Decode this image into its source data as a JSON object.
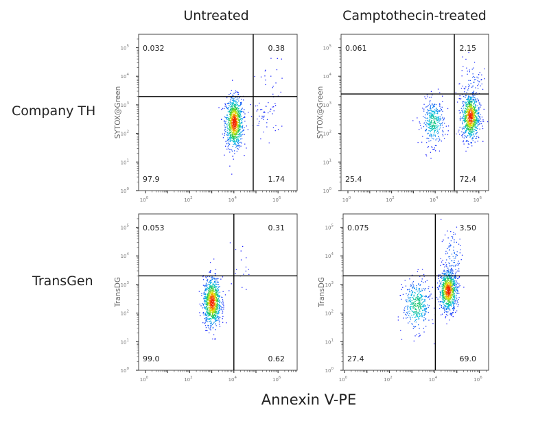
{
  "figure": {
    "column_titles": [
      "Untreated",
      "Camptothecin-treated"
    ],
    "row_labels": [
      "Company TH",
      "TransGen"
    ],
    "x_axis_label": "Annexin V-PE"
  },
  "chart_data": [
    {
      "type": "scatter",
      "row": "Company TH",
      "column": "Untreated",
      "ylabel": "SYTOX@Green",
      "x_scale": "log",
      "y_scale": "log",
      "xlim": [
        1,
        8000000
      ],
      "ylim": [
        1,
        250000
      ],
      "x_ticks": [
        "10^0",
        "10^2",
        "10^4",
        "10^6"
      ],
      "y_ticks": [
        "10^0",
        "10^1",
        "10^2",
        "10^3",
        "10^4",
        "10^5"
      ],
      "gate": {
        "x": 75000,
        "y": 1950
      },
      "quadrants": {
        "upper_left": "0.032",
        "upper_right": "0.38",
        "lower_left": "97.9",
        "lower_right": "1.74"
      },
      "populations": [
        {
          "log_x": 4.0,
          "log_y": 2.4,
          "sd_x": 0.2,
          "sd_y": 0.45,
          "events": 900
        },
        {
          "log_x": 5.4,
          "log_y": 2.6,
          "sd_x": 0.35,
          "sd_y": 0.35,
          "events": 45
        },
        {
          "log_x": 5.6,
          "log_y": 3.8,
          "sd_x": 0.35,
          "sd_y": 0.5,
          "events": 25
        }
      ]
    },
    {
      "type": "scatter",
      "row": "Company TH",
      "column": "Camptothecin-treated",
      "ylabel": "SYTOX@Green",
      "x_scale": "log",
      "y_scale": "log",
      "xlim": [
        1,
        8000000
      ],
      "ylim": [
        1,
        250000
      ],
      "x_ticks": [
        "10^0",
        "10^2",
        "10^4",
        "10^6"
      ],
      "y_ticks": [
        "10^0",
        "10^1",
        "10^2",
        "10^3",
        "10^4",
        "10^5"
      ],
      "gate": {
        "x": 75000,
        "y": 2400
      },
      "quadrants": {
        "upper_left": "0.061",
        "upper_right": "2.15",
        "lower_left": "25.4",
        "lower_right": "72.4"
      },
      "populations": [
        {
          "log_x": 3.9,
          "log_y": 2.4,
          "sd_x": 0.25,
          "sd_y": 0.4,
          "events": 350
        },
        {
          "log_x": 5.6,
          "log_y": 2.6,
          "sd_x": 0.2,
          "sd_y": 0.4,
          "events": 800
        },
        {
          "log_x": 5.7,
          "log_y": 3.7,
          "sd_x": 0.3,
          "sd_y": 0.5,
          "events": 80
        }
      ]
    },
    {
      "type": "scatter",
      "row": "TransGen",
      "column": "Untreated",
      "ylabel": "TransDG",
      "x_scale": "log",
      "y_scale": "log",
      "xlim": [
        1,
        8000000
      ],
      "ylim": [
        1,
        250000
      ],
      "x_ticks": [
        "10^0",
        "10^2",
        "10^4",
        "10^6"
      ],
      "y_ticks": [
        "10^0",
        "10^1",
        "10^2",
        "10^3",
        "10^4",
        "10^5"
      ],
      "gate": {
        "x": 10000,
        "y": 2000
      },
      "quadrants": {
        "upper_left": "0.053",
        "upper_right": "0.31",
        "lower_left": "99.0",
        "lower_right": "0.62"
      },
      "populations": [
        {
          "log_x": 3.0,
          "log_y": 2.4,
          "sd_x": 0.2,
          "sd_y": 0.42,
          "events": 900
        },
        {
          "log_x": 4.3,
          "log_y": 3.5,
          "sd_x": 0.3,
          "sd_y": 0.5,
          "events": 18
        }
      ]
    },
    {
      "type": "scatter",
      "row": "TransGen",
      "column": "Camptothecin-treated",
      "ylabel": "TransDG",
      "x_scale": "log",
      "y_scale": "log",
      "xlim": [
        1,
        8000000
      ],
      "ylim": [
        1,
        250000
      ],
      "x_ticks": [
        "10^0",
        "10^2",
        "10^4",
        "10^6"
      ],
      "y_ticks": [
        "10^0",
        "10^1",
        "10^2",
        "10^3",
        "10^4",
        "10^5"
      ],
      "gate": {
        "x": 11000,
        "y": 2000
      },
      "quadrants": {
        "upper_left": "0.075",
        "upper_right": "3.50",
        "lower_left": "27.4",
        "lower_right": "69.0"
      },
      "populations": [
        {
          "log_x": 3.2,
          "log_y": 2.3,
          "sd_x": 0.3,
          "sd_y": 0.45,
          "events": 380
        },
        {
          "log_x": 4.6,
          "log_y": 2.8,
          "sd_x": 0.2,
          "sd_y": 0.35,
          "events": 800
        },
        {
          "log_x": 4.8,
          "log_y": 4.0,
          "sd_x": 0.25,
          "sd_y": 0.6,
          "events": 110
        }
      ]
    }
  ]
}
